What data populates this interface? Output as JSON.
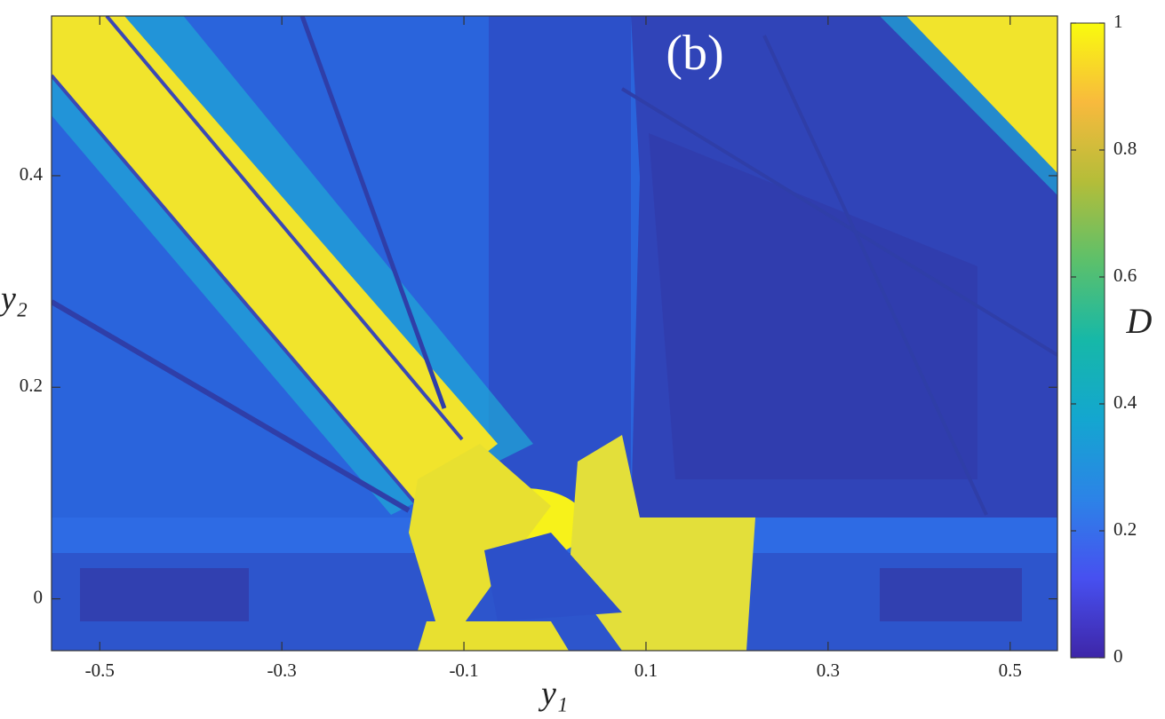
{
  "chart_data": {
    "type": "heatmap",
    "annotation": "(b)",
    "x_label": "y₁",
    "y_label": "y₂",
    "xlim": [
      -0.553,
      0.552
    ],
    "ylim": [
      -0.049,
      0.551
    ],
    "xticks": [
      -0.5,
      -0.3,
      -0.1,
      0.1,
      0.3,
      0.5
    ],
    "yticks": [
      0,
      0.2,
      0.4
    ],
    "colorbar": {
      "label": "D",
      "lim": [
        0,
        1
      ],
      "ticks": [
        0,
        0.2,
        0.4,
        0.6,
        0.8,
        1
      ],
      "colormap": [
        "#3e26a8",
        "#4750f0",
        "#2c83e7",
        "#14a6d0",
        "#16b8a8",
        "#5cc06b",
        "#b4bd39",
        "#f8ba3d",
        "#f9fb0e"
      ]
    }
  }
}
